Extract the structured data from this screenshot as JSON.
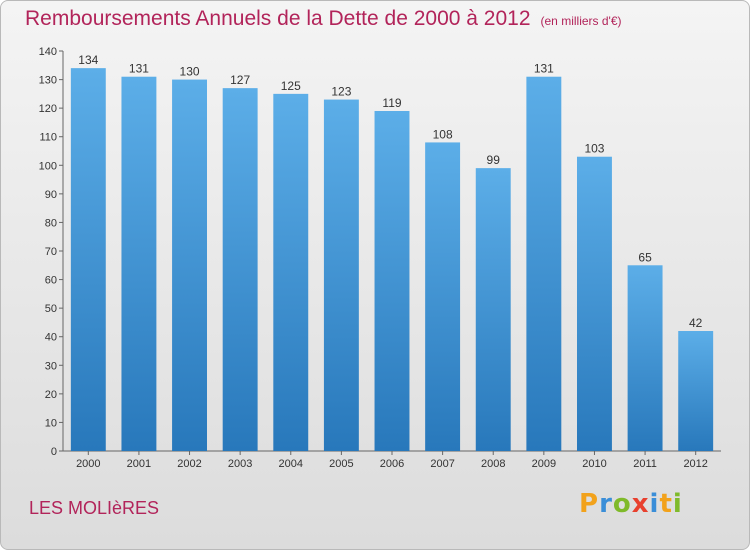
{
  "header": {
    "title": "Remboursements Annuels de la Dette de 2000 à 2012",
    "unit": "(en milliers d'€)"
  },
  "footer": {
    "town": "LES MOLIèRES",
    "logo": [
      "P",
      "r",
      "o",
      "x",
      "i",
      "t",
      "i"
    ]
  },
  "colors": {
    "bar_top": "#5caee8",
    "bar_bottom": "#2878bb",
    "title": "#b2245a",
    "logo": [
      "#f2a21b",
      "#3a8ed8",
      "#7fba2a",
      "#e8402e",
      "#3a8ed8",
      "#f2a21b",
      "#7fba2a"
    ]
  },
  "chart_data": {
    "type": "bar",
    "categories": [
      "2000",
      "2001",
      "2002",
      "2003",
      "2004",
      "2005",
      "2006",
      "2007",
      "2008",
      "2009",
      "2010",
      "2011",
      "2012"
    ],
    "values": [
      134,
      131,
      130,
      127,
      125,
      123,
      119,
      108,
      99,
      131,
      103,
      65,
      42
    ],
    "ylim": [
      0,
      140
    ],
    "yticks": [
      0,
      10,
      20,
      30,
      40,
      50,
      60,
      70,
      80,
      90,
      100,
      110,
      120,
      130,
      140
    ],
    "grid": false,
    "data_labels": true
  }
}
